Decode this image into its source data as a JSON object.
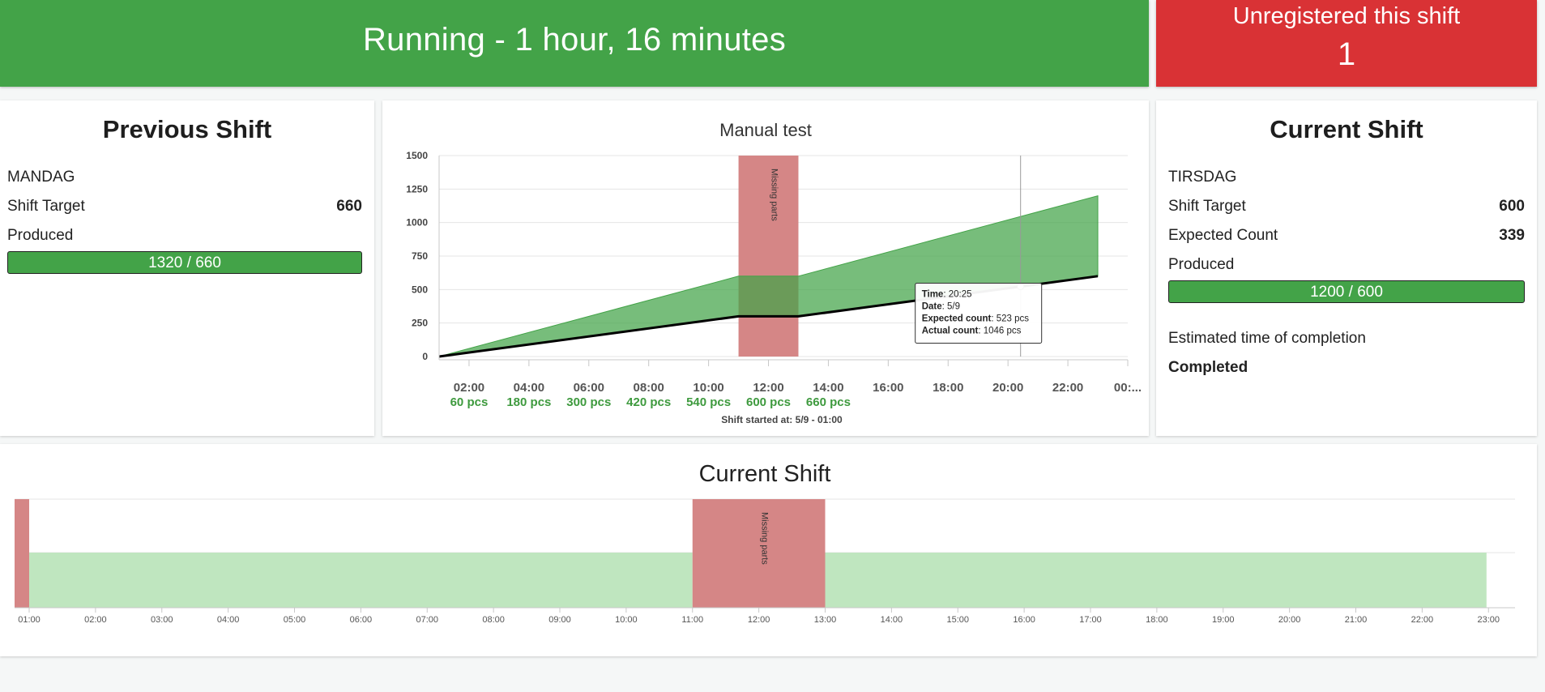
{
  "status_banner": {
    "text": "Running - 1 hour, 16 minutes",
    "color": "#43a348"
  },
  "unregistered": {
    "label": "Unregistered this shift",
    "count": "1",
    "color": "#d93235"
  },
  "previous_shift": {
    "title": "Previous Shift",
    "day": "MANDAG",
    "target_label": "Shift Target",
    "target_value": "660",
    "produced_label": "Produced",
    "produced_text": "1320 / 660",
    "produced_fraction": 1.0
  },
  "current_shift": {
    "title": "Current Shift",
    "day": "TIRSDAG",
    "target_label": "Shift Target",
    "target_value": "600",
    "expected_label": "Expected Count",
    "expected_value": "339",
    "produced_label": "Produced",
    "produced_text": "1200 / 600",
    "produced_fraction": 1.0,
    "eta_label": "Estimated time of completion",
    "eta_value": "Completed"
  },
  "chart_data": [
    {
      "type": "area",
      "title": "Manual test",
      "caption": "Shift started at: 5/9 - 01:00",
      "ylim": [
        0,
        1500
      ],
      "y_ticks": [
        0,
        250,
        500,
        750,
        1000,
        1250,
        1500
      ],
      "x_range": [
        1,
        24
      ],
      "x_ticks": [
        {
          "h": 2,
          "label": "02:00",
          "pcs": "60 pcs"
        },
        {
          "h": 4,
          "label": "04:00",
          "pcs": "180 pcs"
        },
        {
          "h": 6,
          "label": "06:00",
          "pcs": "300 pcs"
        },
        {
          "h": 8,
          "label": "08:00",
          "pcs": "420 pcs"
        },
        {
          "h": 10,
          "label": "10:00",
          "pcs": "540 pcs"
        },
        {
          "h": 12,
          "label": "12:00",
          "pcs": "600 pcs"
        },
        {
          "h": 14,
          "label": "14:00",
          "pcs": "660 pcs"
        },
        {
          "h": 16,
          "label": "16:00",
          "pcs": ""
        },
        {
          "h": 18,
          "label": "18:00",
          "pcs": ""
        },
        {
          "h": 20,
          "label": "20:00",
          "pcs": ""
        },
        {
          "h": 22,
          "label": "22:00",
          "pcs": ""
        },
        {
          "h": 24,
          "label": "00:...",
          "pcs": ""
        }
      ],
      "series": [
        {
          "name": "Actual count",
          "color": "#43a348",
          "x": [
            1,
            11,
            13,
            23
          ],
          "y": [
            0,
            600,
            600,
            1200
          ]
        },
        {
          "name": "Expected count",
          "color": "#000000",
          "x": [
            1,
            11,
            13,
            23
          ],
          "y": [
            0,
            300,
            300,
            600
          ]
        }
      ],
      "bands": [
        {
          "from": 11,
          "to": 13,
          "label": "Missing parts",
          "color": "#d58686"
        }
      ],
      "grid": true,
      "tooltip": {
        "x": 20.42,
        "y": 523,
        "lines": [
          {
            "key": "Time",
            "value": ": 20:25"
          },
          {
            "key": "Date",
            "value": ": 5/9"
          },
          {
            "key": "Expected count",
            "value": ": 523 pcs"
          },
          {
            "key": "Actual count",
            "value": ": 1046 pcs"
          }
        ]
      }
    },
    {
      "type": "area",
      "title": "Current Shift",
      "x_range": [
        0.78,
        23.4
      ],
      "x_ticks": [
        "01:00",
        "02:00",
        "03:00",
        "04:00",
        "05:00",
        "06:00",
        "07:00",
        "08:00",
        "09:00",
        "10:00",
        "11:00",
        "12:00",
        "13:00",
        "14:00",
        "15:00",
        "16:00",
        "17:00",
        "18:00",
        "19:00",
        "20:00",
        "21:00",
        "22:00",
        "23:00"
      ],
      "segments": [
        {
          "from": 0.78,
          "to": 1.0,
          "state": "stop",
          "color": "#d58686"
        },
        {
          "from": 1.0,
          "to": 11.0,
          "state": "running",
          "color": "#bfe6bf"
        },
        {
          "from": 11.0,
          "to": 13.0,
          "state": "stop",
          "color": "#d58686",
          "label": "Missing parts"
        },
        {
          "from": 13.0,
          "to": 22.97,
          "state": "running",
          "color": "#bfe6bf"
        }
      ]
    }
  ]
}
